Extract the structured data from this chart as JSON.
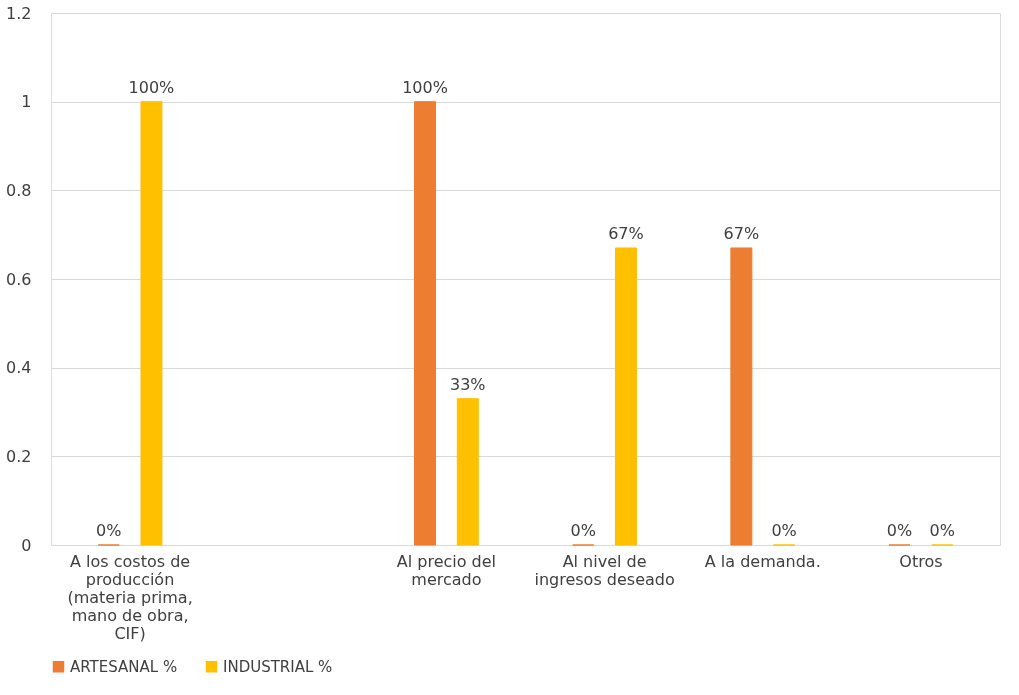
{
  "chart_data": {
    "type": "bar",
    "categories": [
      "A los costos de producción (materia prima, mano de obra, CIF)",
      null,
      "Al precio del mercado",
      "Al nivel de ingresos deseado",
      "A la demanda.",
      "Otros"
    ],
    "series": [
      {
        "name": "ARTESANAL %",
        "color": "#ed7d31",
        "values": [
          0,
          null,
          1,
          0,
          0.67,
          0
        ],
        "value_labels": [
          "0%",
          null,
          "100%",
          "0%",
          "67%",
          "0%"
        ]
      },
      {
        "name": "INDUSTRIAL %",
        "color": "#ffc000",
        "values": [
          1,
          null,
          0.33,
          0.67,
          0,
          0
        ],
        "value_labels": [
          "100%",
          null,
          "33%",
          "67%",
          "0%",
          "0%"
        ]
      }
    ],
    "ylim": [
      0,
      1.2
    ],
    "yticks": [
      0,
      0.2,
      0.4,
      0.6,
      0.8,
      1,
      1.2
    ],
    "grid": "y",
    "legend": "bottom"
  }
}
